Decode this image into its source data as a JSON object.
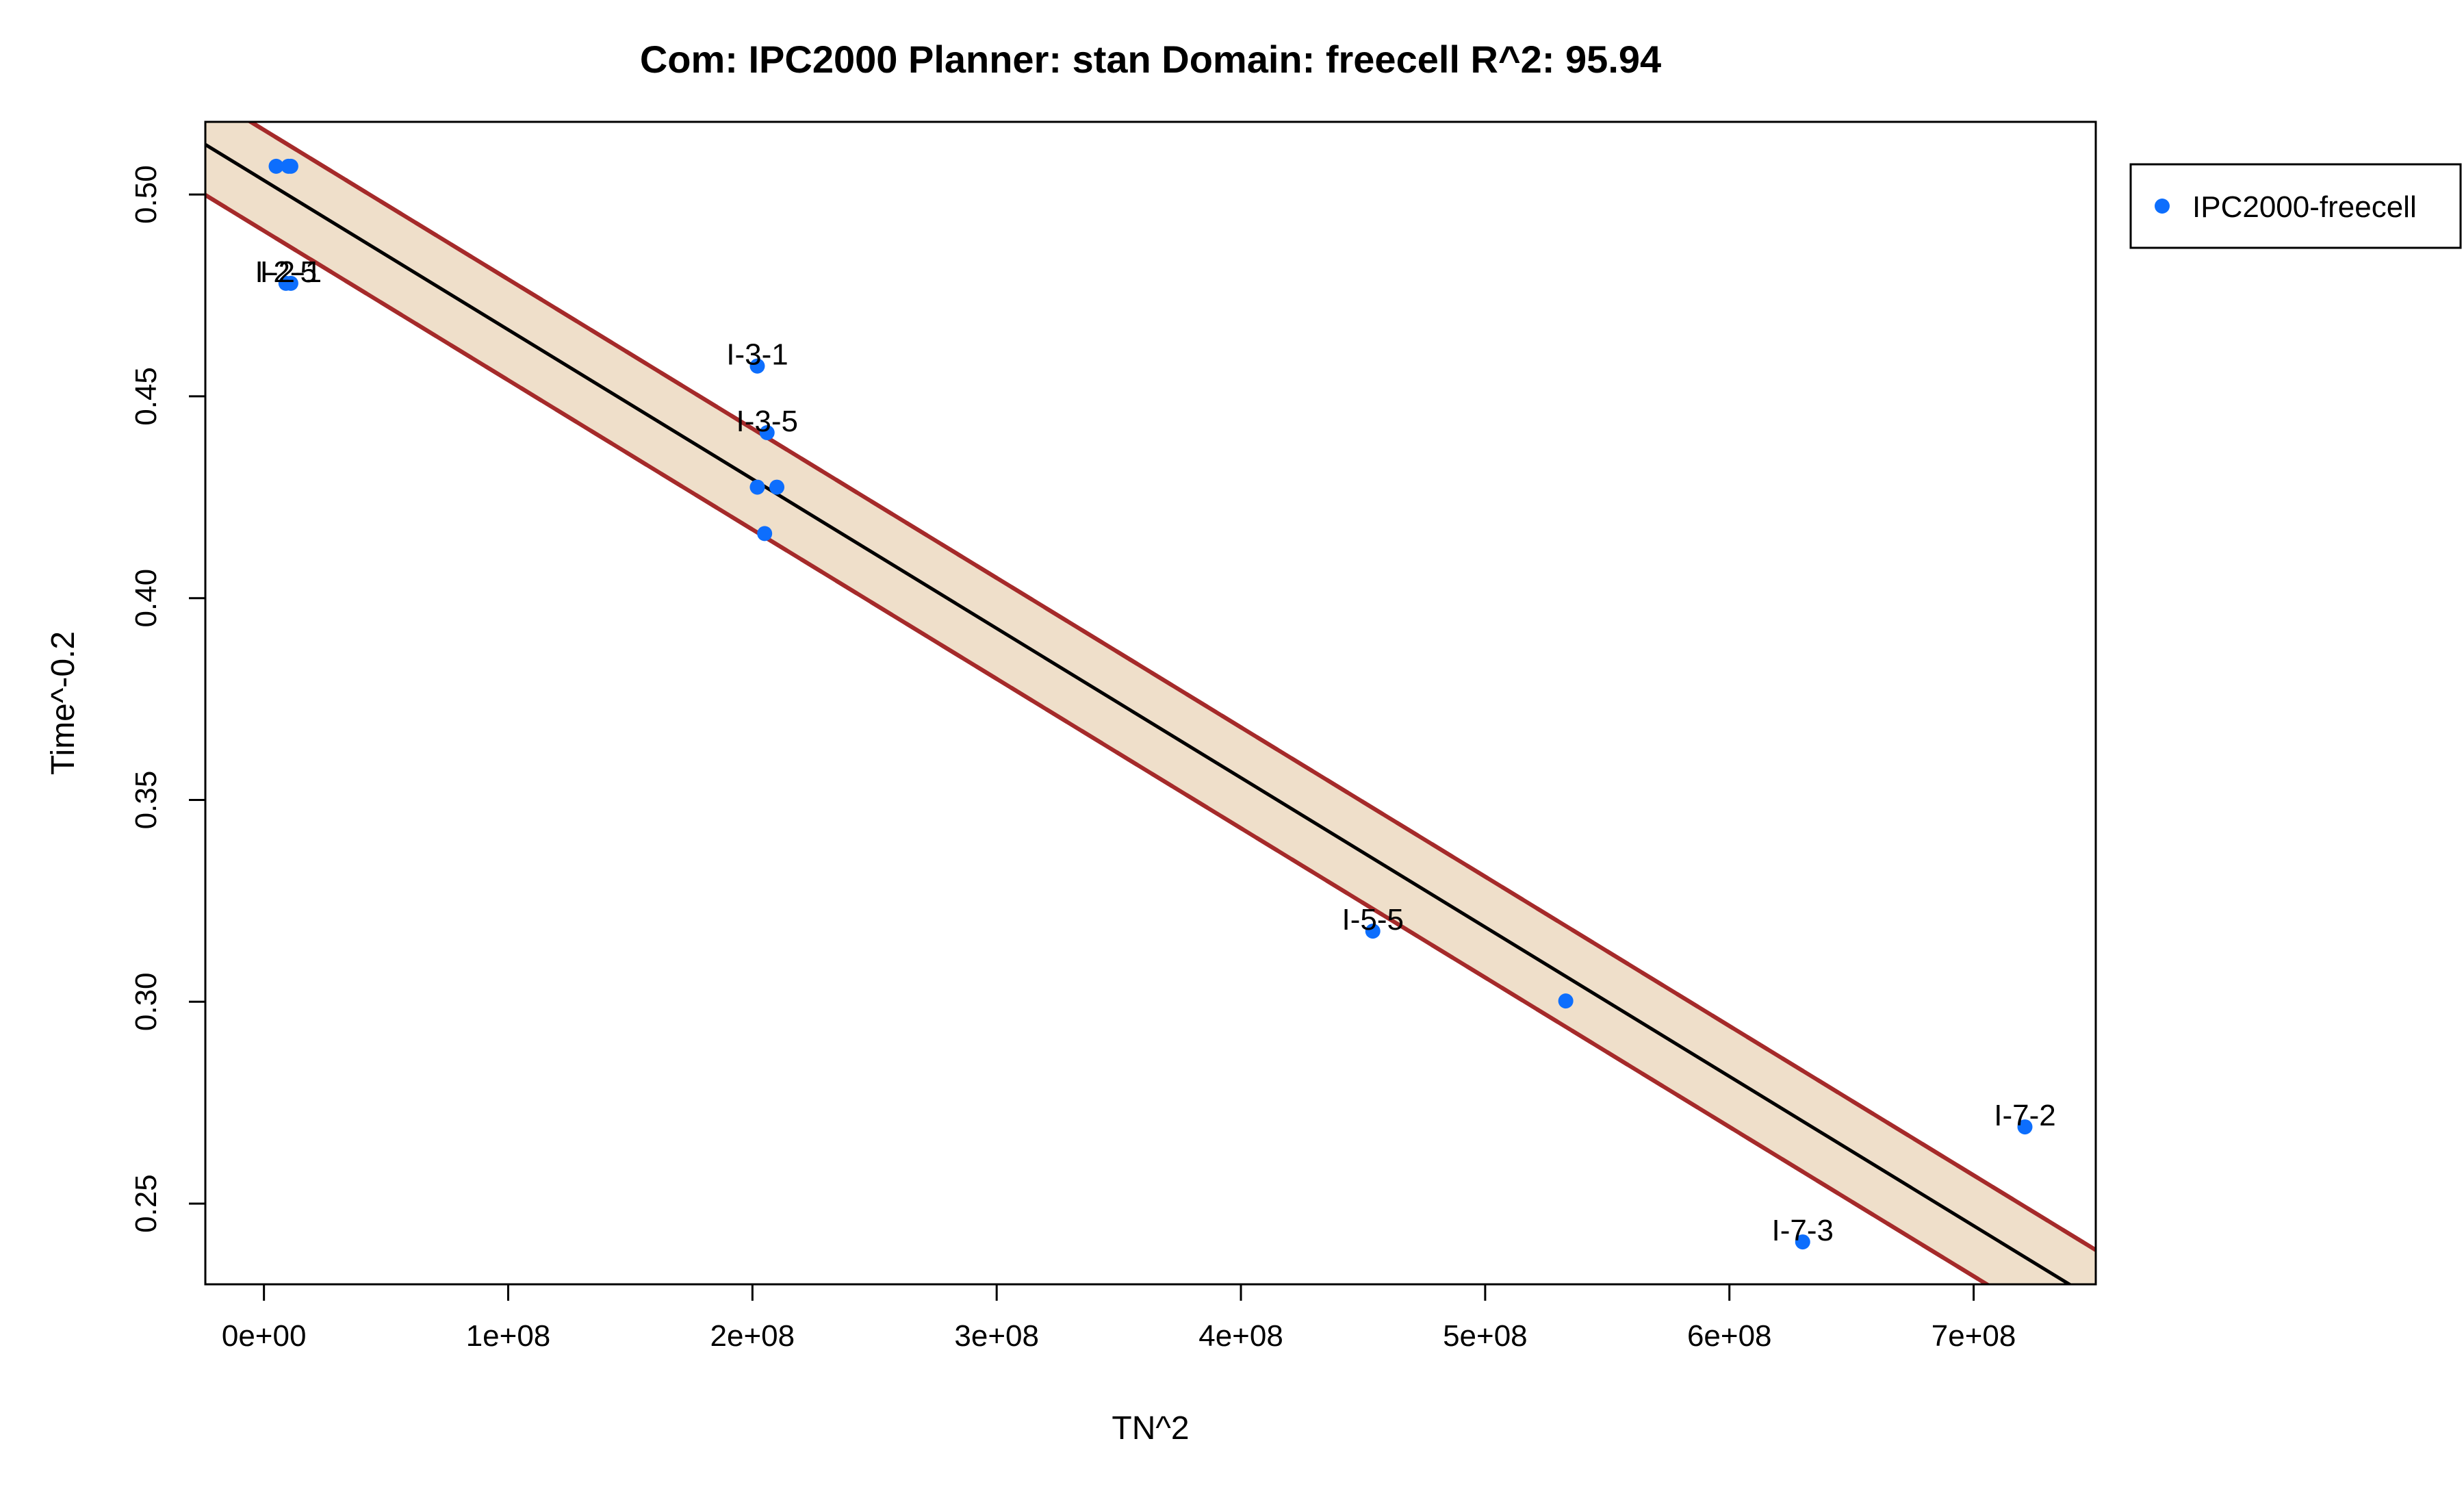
{
  "chart_data": {
    "type": "scatter",
    "title": "Com: IPC2000 Planner: stan Domain: freecell R^2: 95.94",
    "xlabel": "TN^2",
    "ylabel": "Time^-0.2",
    "xlim": [
      -24000000,
      750000000
    ],
    "ylim": [
      0.23,
      0.518
    ],
    "x_ticks": [
      {
        "value": 0,
        "label": "0e+00"
      },
      {
        "value": 100000000,
        "label": "1e+08"
      },
      {
        "value": 200000000,
        "label": "2e+08"
      },
      {
        "value": 300000000,
        "label": "3e+08"
      },
      {
        "value": 400000000,
        "label": "4e+08"
      },
      {
        "value": 500000000,
        "label": "5e+08"
      },
      {
        "value": 600000000,
        "label": "6e+08"
      },
      {
        "value": 700000000,
        "label": "7e+08"
      }
    ],
    "y_ticks": [
      {
        "value": 0.25,
        "label": "0.25"
      },
      {
        "value": 0.3,
        "label": "0.30"
      },
      {
        "value": 0.35,
        "label": "0.35"
      },
      {
        "value": 0.4,
        "label": "0.40"
      },
      {
        "value": 0.45,
        "label": "0.45"
      },
      {
        "value": 0.5,
        "label": "0.50"
      }
    ],
    "grid": false,
    "legend": {
      "position": "right",
      "entries": [
        {
          "label": "IPC2000-freecell",
          "color": "#0d6efd"
        }
      ]
    },
    "series": [
      {
        "name": "IPC2000-freecell",
        "color": "#0d6efd",
        "points": [
          {
            "x": 5000000,
            "y": 0.507,
            "label": ""
          },
          {
            "x": 10000000,
            "y": 0.507,
            "label": ""
          },
          {
            "x": 11000000,
            "y": 0.507,
            "label": ""
          },
          {
            "x": 9000000,
            "y": 0.478,
            "label": "I-2-5"
          },
          {
            "x": 11000000,
            "y": 0.478,
            "label": "I-2-1"
          },
          {
            "x": 202000000,
            "y": 0.4575,
            "label": "I-3-1"
          },
          {
            "x": 206000000,
            "y": 0.441,
            "label": "I-3-5"
          },
          {
            "x": 202000000,
            "y": 0.4275,
            "label": ""
          },
          {
            "x": 210000000,
            "y": 0.4275,
            "label": ""
          },
          {
            "x": 205000000,
            "y": 0.416,
            "label": ""
          },
          {
            "x": 454000000,
            "y": 0.3175,
            "label": "I-5-5"
          },
          {
            "x": 533000000,
            "y": 0.3002,
            "label": ""
          },
          {
            "x": 630000000,
            "y": 0.2405,
            "label": "I-7-3"
          },
          {
            "x": 721000000,
            "y": 0.269,
            "label": "I-7-2"
          }
        ]
      }
    ],
    "fit_line": {
      "intercept": 0.5035,
      "slope": -3.7e-10,
      "color": "#000000"
    },
    "confidence_band": {
      "half_width": 0.0125,
      "fill": "#efdfca",
      "color": "#a52a2a"
    },
    "prediction_band": {
      "half_width": 0.0125,
      "color": "#a52a2a",
      "style": "dashed"
    }
  }
}
